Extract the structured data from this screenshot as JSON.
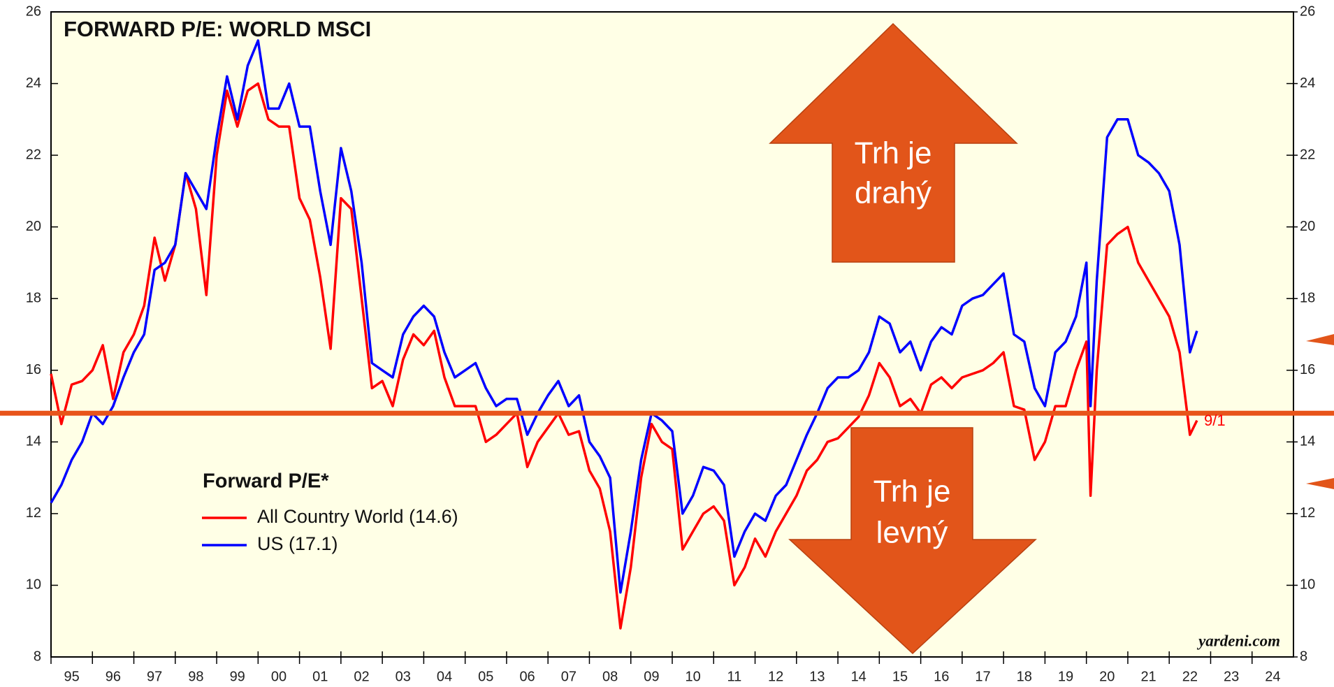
{
  "chart_data": {
    "type": "line",
    "title": "FORWARD P/E: WORLD MSCI",
    "legend_title": "Forward P/E*",
    "x": [
      1995.0,
      1995.25,
      1995.5,
      1995.75,
      1996.0,
      1996.25,
      1996.5,
      1996.75,
      1997.0,
      1997.25,
      1997.5,
      1997.75,
      1998.0,
      1998.25,
      1998.5,
      1998.75,
      1999.0,
      1999.25,
      1999.5,
      1999.75,
      2000.0,
      2000.25,
      2000.5,
      2000.75,
      2001.0,
      2001.25,
      2001.5,
      2001.75,
      2002.0,
      2002.25,
      2002.5,
      2002.75,
      2003.0,
      2003.25,
      2003.5,
      2003.75,
      2004.0,
      2004.25,
      2004.5,
      2004.75,
      2005.0,
      2005.25,
      2005.5,
      2005.75,
      2006.0,
      2006.25,
      2006.5,
      2006.75,
      2007.0,
      2007.25,
      2007.5,
      2007.75,
      2008.0,
      2008.25,
      2008.5,
      2008.75,
      2009.0,
      2009.25,
      2009.5,
      2009.75,
      2010.0,
      2010.25,
      2010.5,
      2010.75,
      2011.0,
      2011.25,
      2011.5,
      2011.75,
      2012.0,
      2012.25,
      2012.5,
      2012.75,
      2013.0,
      2013.25,
      2013.5,
      2013.75,
      2014.0,
      2014.25,
      2014.5,
      2014.75,
      2015.0,
      2015.25,
      2015.5,
      2015.75,
      2016.0,
      2016.25,
      2016.5,
      2016.75,
      2017.0,
      2017.25,
      2017.5,
      2017.75,
      2018.0,
      2018.25,
      2018.5,
      2018.75,
      2019.0,
      2019.25,
      2019.5,
      2019.75,
      2020.0,
      2020.1,
      2020.25,
      2020.5,
      2020.75,
      2021.0,
      2021.25,
      2021.5,
      2021.75,
      2022.0,
      2022.25,
      2022.5,
      2022.67
    ],
    "series": [
      {
        "name": "All Country World (14.6)",
        "color": "#ff0000",
        "values": [
          15.9,
          14.5,
          15.6,
          15.7,
          16.0,
          16.7,
          15.2,
          16.5,
          17.0,
          17.8,
          19.7,
          18.5,
          19.5,
          21.5,
          20.5,
          18.1,
          22.0,
          23.8,
          22.8,
          23.8,
          24.0,
          23.0,
          22.8,
          22.8,
          20.8,
          20.2,
          18.6,
          16.6,
          20.8,
          20.5,
          18.0,
          15.5,
          15.7,
          15.0,
          16.3,
          17.0,
          16.7,
          17.1,
          15.8,
          15.0,
          15.0,
          15.0,
          14.0,
          14.2,
          14.5,
          14.8,
          13.3,
          14.0,
          14.4,
          14.8,
          14.2,
          14.3,
          13.2,
          12.7,
          11.5,
          8.8,
          10.5,
          13.0,
          14.5,
          14.0,
          13.8,
          11.0,
          11.5,
          12.0,
          12.2,
          11.8,
          10.0,
          10.5,
          11.3,
          10.8,
          11.5,
          12.0,
          12.5,
          13.2,
          13.5,
          14.0,
          14.1,
          14.4,
          14.7,
          15.3,
          16.2,
          15.8,
          15.0,
          15.2,
          14.8,
          15.6,
          15.8,
          15.5,
          15.8,
          15.9,
          16.0,
          16.2,
          16.5,
          15.0,
          14.9,
          13.5,
          14.0,
          15.0,
          15.0,
          16.0,
          16.8,
          12.5,
          16.0,
          19.5,
          19.8,
          20.0,
          19.0,
          18.5,
          18.0,
          17.5,
          16.5,
          14.2,
          14.6
        ]
      },
      {
        "name": "US (17.1)",
        "color": "#0000ff",
        "values": [
          12.3,
          12.8,
          13.5,
          14.0,
          14.8,
          14.5,
          15.0,
          15.8,
          16.5,
          17.0,
          18.8,
          19.0,
          19.5,
          21.5,
          21.0,
          20.5,
          22.5,
          24.2,
          23.0,
          24.5,
          25.2,
          23.3,
          23.3,
          24.0,
          22.8,
          22.8,
          21.0,
          19.5,
          22.2,
          21.0,
          19.0,
          16.2,
          16.0,
          15.8,
          17.0,
          17.5,
          17.8,
          17.5,
          16.5,
          15.8,
          16.0,
          16.2,
          15.5,
          15.0,
          15.2,
          15.2,
          14.2,
          14.8,
          15.3,
          15.7,
          15.0,
          15.3,
          14.0,
          13.6,
          13.0,
          9.8,
          11.5,
          13.5,
          14.8,
          14.6,
          14.3,
          12.0,
          12.5,
          13.3,
          13.2,
          12.8,
          10.8,
          11.5,
          12.0,
          11.8,
          12.5,
          12.8,
          13.5,
          14.2,
          14.8,
          15.5,
          15.8,
          15.8,
          16.0,
          16.5,
          17.5,
          17.3,
          16.5,
          16.8,
          16.0,
          16.8,
          17.2,
          17.0,
          17.8,
          18.0,
          18.1,
          18.4,
          18.7,
          17.0,
          16.8,
          15.5,
          15.0,
          16.5,
          16.8,
          17.5,
          19.0,
          15.0,
          18.5,
          22.5,
          23.0,
          23.0,
          22.0,
          21.8,
          21.5,
          21.0,
          19.5,
          16.5,
          17.1
        ]
      }
    ],
    "reference_line": 14.8,
    "reference_color": "#e8541a",
    "xlim": [
      1995,
      2025
    ],
    "xticks": [
      {
        "value": 1995,
        "label": "95"
      },
      {
        "value": 1996,
        "label": "96"
      },
      {
        "value": 1997,
        "label": "97"
      },
      {
        "value": 1998,
        "label": "98"
      },
      {
        "value": 1999,
        "label": "99"
      },
      {
        "value": 2000,
        "label": "00"
      },
      {
        "value": 2001,
        "label": "01"
      },
      {
        "value": 2002,
        "label": "02"
      },
      {
        "value": 2003,
        "label": "03"
      },
      {
        "value": 2004,
        "label": "04"
      },
      {
        "value": 2005,
        "label": "05"
      },
      {
        "value": 2006,
        "label": "06"
      },
      {
        "value": 2007,
        "label": "07"
      },
      {
        "value": 2008,
        "label": "08"
      },
      {
        "value": 2009,
        "label": "09"
      },
      {
        "value": 2010,
        "label": "10"
      },
      {
        "value": 2011,
        "label": "11"
      },
      {
        "value": 2012,
        "label": "12"
      },
      {
        "value": 2013,
        "label": "13"
      },
      {
        "value": 2014,
        "label": "14"
      },
      {
        "value": 2015,
        "label": "15"
      },
      {
        "value": 2016,
        "label": "16"
      },
      {
        "value": 2017,
        "label": "17"
      },
      {
        "value": 2018,
        "label": "18"
      },
      {
        "value": 2019,
        "label": "19"
      },
      {
        "value": 2020,
        "label": "20"
      },
      {
        "value": 2021,
        "label": "21"
      },
      {
        "value": 2022,
        "label": "22"
      },
      {
        "value": 2023,
        "label": "23"
      },
      {
        "value": 2024,
        "label": "24"
      }
    ],
    "ylim": [
      8,
      26
    ],
    "yticks": [
      8,
      10,
      12,
      14,
      16,
      18,
      20,
      22,
      24,
      26
    ],
    "y2lim": [
      8,
      26
    ],
    "y2ticks": [
      8,
      10,
      12,
      14,
      16,
      18,
      20,
      22,
      24,
      26
    ],
    "annotations": {
      "expensive": [
        "Trh je",
        "drahý"
      ],
      "cheap": [
        "Trh je",
        "levný"
      ],
      "date": "9/1",
      "source": "yardeni.com"
    }
  }
}
